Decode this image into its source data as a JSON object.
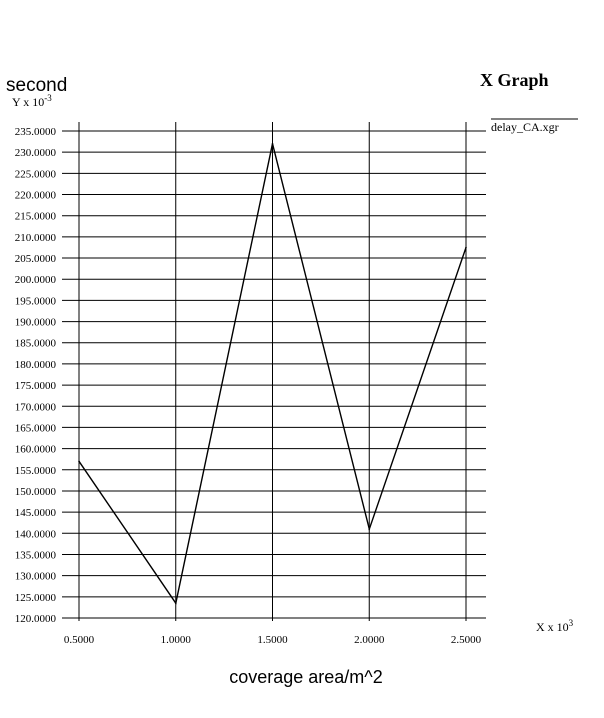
{
  "chart_data": {
    "type": "line",
    "title": "X Graph",
    "ylabel": "second",
    "xlabel": "coverage area/m^2",
    "y_scale_base": "Y x 10",
    "y_scale_exp": "-3",
    "x_scale_base": "X x 10",
    "x_scale_exp": "3",
    "x_ticks": [
      "0.5000",
      "1.0000",
      "1.5000",
      "2.0000",
      "2.5000"
    ],
    "y_ticks": [
      "120.0000",
      "125.0000",
      "130.0000",
      "135.0000",
      "140.0000",
      "145.0000",
      "150.0000",
      "155.0000",
      "160.0000",
      "165.0000",
      "170.0000",
      "175.0000",
      "180.0000",
      "185.0000",
      "190.0000",
      "195.0000",
      "200.0000",
      "205.0000",
      "210.0000",
      "215.0000",
      "220.0000",
      "225.0000",
      "230.0000",
      "235.0000"
    ],
    "xlim": [
      0.5,
      2.5
    ],
    "ylim": [
      120,
      235
    ],
    "grid": true,
    "legend_position": "top-right",
    "series": [
      {
        "name": "delay_CA.xgr",
        "x": [
          0.5,
          1.0,
          1.5,
          2.0,
          2.5
        ],
        "y": [
          157.0,
          123.5,
          232.0,
          141.0,
          207.5
        ]
      }
    ]
  }
}
